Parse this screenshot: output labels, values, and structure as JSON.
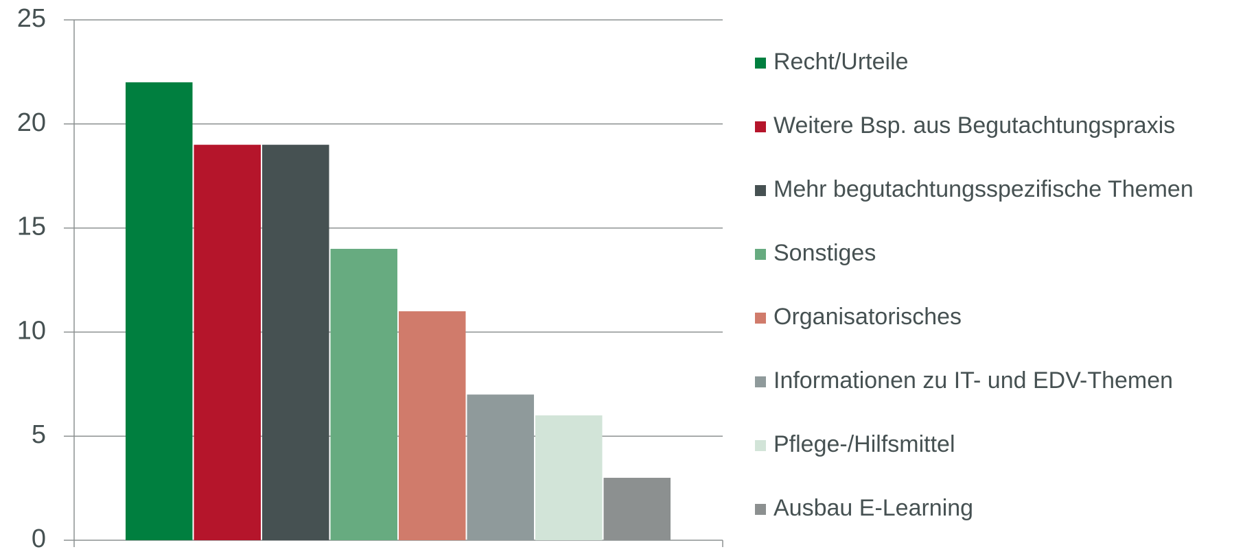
{
  "chart_data": {
    "type": "bar",
    "series": [
      {
        "name": "Recht/Urteile",
        "color": "#007f3f",
        "values": [
          22
        ]
      },
      {
        "name": "Weitere Bsp. aus Begutachtungspraxis",
        "color": "#b5152b",
        "values": [
          19
        ]
      },
      {
        "name": "Mehr begutachtungsspezifische Themen",
        "color": "#465152",
        "values": [
          19
        ]
      },
      {
        "name": "Sonstiges",
        "color": "#67ab80",
        "values": [
          14
        ]
      },
      {
        "name": "Organisatorisches",
        "color": "#d07b6b",
        "values": [
          11
        ]
      },
      {
        "name": "Informationen zu IT- und EDV-Themen",
        "color": "#8f9a9b",
        "values": [
          7
        ]
      },
      {
        "name": "Pflege-/Hilfsmittel",
        "color": "#d2e4d8",
        "values": [
          6
        ]
      },
      {
        "name": "Ausbau E-Learning",
        "color": "#8c9090",
        "values": [
          3
        ]
      }
    ],
    "ylim": [
      0,
      25
    ],
    "yticks": [
      0,
      5,
      10,
      15,
      20,
      25
    ],
    "grid": true,
    "legend": "right"
  }
}
